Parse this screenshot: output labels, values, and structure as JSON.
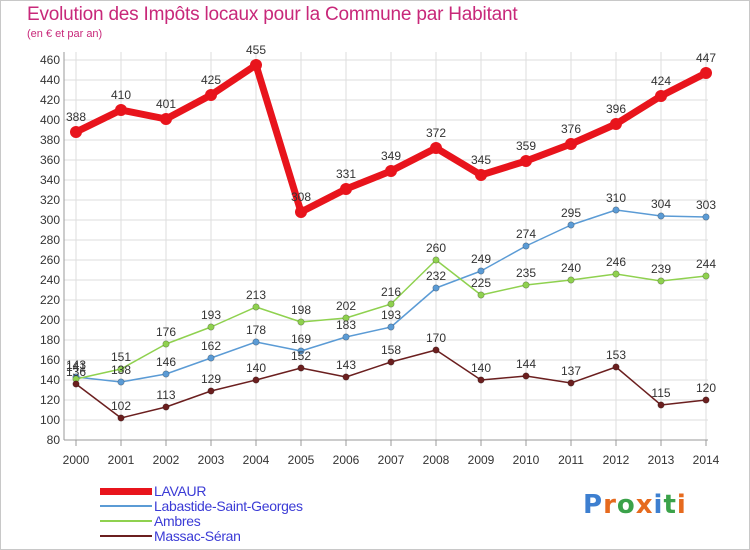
{
  "header": {
    "title": "Evolution des Impôts locaux pour la Commune par Habitant",
    "subtitle": "(en € et par an)"
  },
  "logo": {
    "text": "Proxiti",
    "letter_colors": [
      "#3d7fd0",
      "#e66a1e",
      "#3ba24a",
      "#e66a1e",
      "#3d7fd0",
      "#3ba24a",
      "#e66a1e"
    ]
  },
  "chart_data": {
    "type": "line",
    "title": "Evolution des Impôts locaux pour la Commune par Habitant",
    "subtitle": "(en € et par an)",
    "xlabel": "",
    "ylabel": "",
    "x": [
      "2000",
      "2001",
      "2002",
      "2003",
      "2004",
      "2005",
      "2006",
      "2007",
      "2008",
      "2009",
      "2010",
      "2011",
      "2012",
      "2013",
      "2014"
    ],
    "ylim": [
      80,
      460
    ],
    "yticks": [
      80,
      100,
      120,
      140,
      160,
      180,
      200,
      220,
      240,
      260,
      280,
      300,
      320,
      340,
      360,
      380,
      400,
      420,
      440,
      460
    ],
    "grid": true,
    "legend_position": "bottom-left",
    "series": [
      {
        "name": "LAVAUR",
        "color": "#e8141c",
        "emphasis": true,
        "values": [
          388,
          410,
          401,
          425,
          455,
          308,
          331,
          349,
          372,
          345,
          359,
          376,
          396,
          424,
          447
        ]
      },
      {
        "name": "Labastide-Saint-Georges",
        "color": "#5b9bd5",
        "values": [
          143,
          138,
          146,
          162,
          178,
          169,
          183,
          193,
          232,
          249,
          274,
          295,
          310,
          304,
          303
        ]
      },
      {
        "name": "Ambres",
        "color": "#8fd14f",
        "values": [
          141,
          151,
          176,
          193,
          213,
          198,
          202,
          216,
          260,
          225,
          235,
          240,
          246,
          239,
          244
        ]
      },
      {
        "name": "Massac-Séran",
        "color": "#6b1f1f",
        "values": [
          136,
          102,
          113,
          129,
          140,
          152,
          143,
          158,
          170,
          140,
          144,
          137,
          153,
          115,
          120
        ]
      }
    ]
  }
}
